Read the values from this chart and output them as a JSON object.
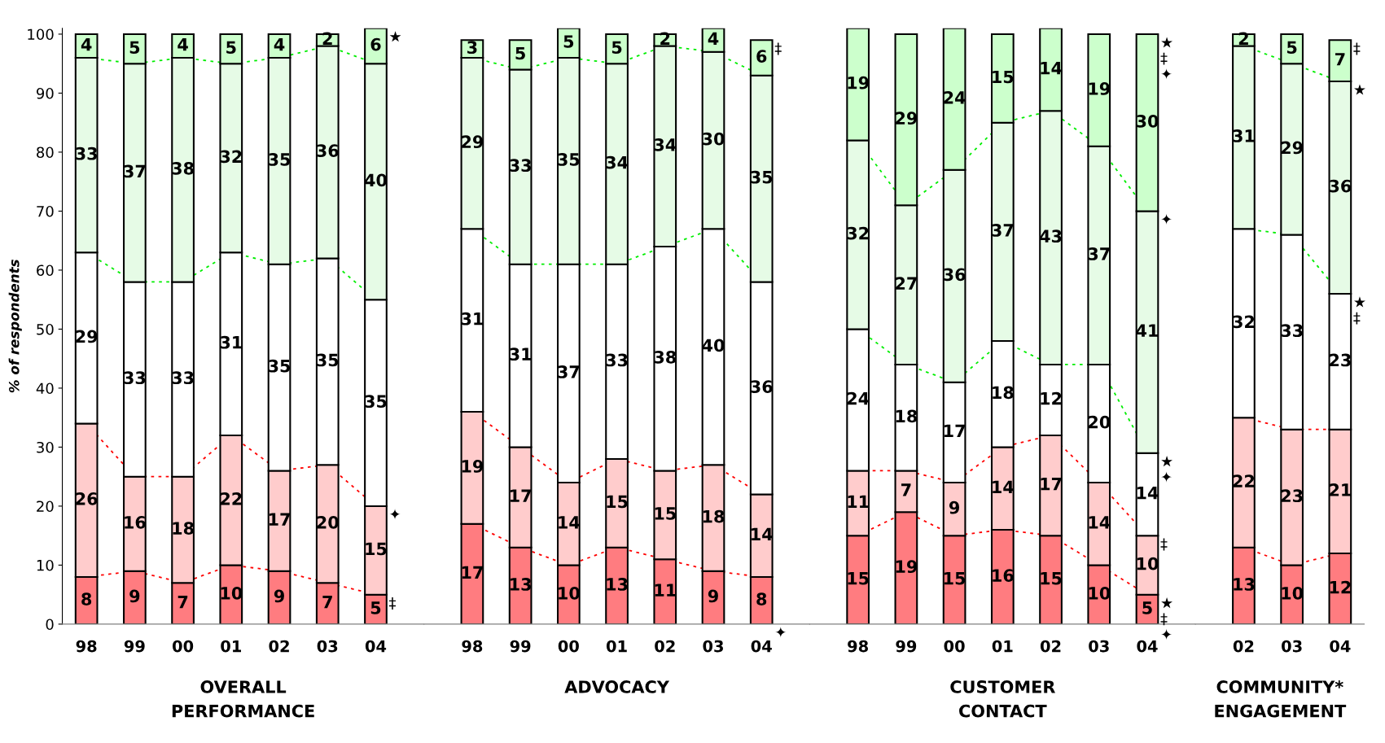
{
  "chart_data": [
    {
      "type": "bar",
      "stacked": true,
      "xlabel": "OVERALL\nPERFORMANCE",
      "ylabel": "% of respondents",
      "categories": [
        "98",
        "99",
        "00",
        "01",
        "02",
        "03",
        "04"
      ],
      "ylim": [
        0,
        101
      ],
      "yticks": [
        0,
        10,
        20,
        30,
        40,
        50,
        60,
        70,
        80,
        90,
        100
      ],
      "data_labels": true,
      "series": [
        {
          "color": "#ff7c80",
          "values": [
            8,
            9,
            7,
            10,
            9,
            7,
            5
          ]
        },
        {
          "color": "#ffcccc",
          "values": [
            26,
            16,
            18,
            22,
            17,
            20,
            15
          ]
        },
        {
          "color": "#ffffff",
          "values": [
            29,
            33,
            33,
            31,
            35,
            35,
            35
          ]
        },
        {
          "color": "#e6fbe6",
          "values": [
            33,
            37,
            38,
            32,
            35,
            36,
            40
          ]
        },
        {
          "color": "#ccffcc",
          "values": [
            4,
            5,
            4,
            5,
            4,
            2,
            6
          ]
        }
      ],
      "annotations": [
        {
          "text": "★",
          "x": "04",
          "y": 101
        },
        {
          "text": "✦",
          "x": "04",
          "y": 20
        },
        {
          "text": "‡",
          "x": "04",
          "y": 5
        }
      ]
    },
    {
      "type": "bar",
      "stacked": true,
      "xlabel": "ADVOCACY",
      "categories": [
        "98",
        "99",
        "00",
        "01",
        "02",
        "03",
        "04"
      ],
      "ylim": [
        0,
        101
      ],
      "yticks": [
        0,
        10,
        20,
        30,
        40,
        50,
        60,
        70,
        80,
        90,
        100
      ],
      "tick_labels": "x",
      "data_labels": true,
      "series": [
        {
          "color": "#ff7c80",
          "values": [
            17,
            13,
            10,
            13,
            11,
            9,
            8
          ]
        },
        {
          "color": "#ffcccc",
          "values": [
            19,
            17,
            14,
            15,
            15,
            18,
            14
          ]
        },
        {
          "color": "#ffffff",
          "values": [
            31,
            31,
            37,
            33,
            38,
            40,
            36
          ]
        },
        {
          "color": "#e6fbe6",
          "values": [
            29,
            33,
            35,
            34,
            34,
            30,
            35
          ]
        },
        {
          "color": "#ccffcc",
          "values": [
            3,
            5,
            5,
            5,
            2,
            4,
            6
          ]
        }
      ],
      "annotations": [
        {
          "text": "‡",
          "x": "04",
          "y": 99
        },
        {
          "text": "✦",
          "x": "04",
          "y": 0
        }
      ]
    },
    {
      "type": "bar",
      "stacked": true,
      "xlabel": "CUSTOMER\nCONTACT",
      "categories": [
        "98",
        "99",
        "00",
        "01",
        "02",
        "03",
        "04"
      ],
      "ylim": [
        0,
        101
      ],
      "yticks": [
        0,
        10,
        20,
        30,
        40,
        50,
        60,
        70,
        80,
        90,
        100
      ],
      "tick_labels": "x",
      "data_labels": true,
      "series": [
        {
          "color": "#ff7c80",
          "values": [
            15,
            19,
            15,
            16,
            15,
            10,
            5
          ]
        },
        {
          "color": "#ffcccc",
          "values": [
            11,
            7,
            9,
            14,
            17,
            14,
            10
          ]
        },
        {
          "color": "#ffffff",
          "values": [
            24,
            18,
            17,
            18,
            12,
            20,
            14
          ]
        },
        {
          "color": "#e6fbe6",
          "values": [
            32,
            27,
            36,
            37,
            43,
            37,
            41
          ]
        },
        {
          "color": "#ccffcc",
          "values": [
            19,
            29,
            24,
            15,
            14,
            19,
            30
          ]
        }
      ],
      "annotations": [
        {
          "text": "★",
          "x": "04",
          "y": 100
        },
        {
          "text": "‡",
          "x": "04",
          "y": 100
        },
        {
          "text": "✦",
          "x": "04",
          "y": 100
        },
        {
          "text": "✦",
          "x": "04",
          "y": 70
        },
        {
          "text": "★",
          "x": "04",
          "y": 29
        },
        {
          "text": "✦",
          "x": "04",
          "y": 29
        },
        {
          "text": "‡",
          "x": "04",
          "y": 15
        },
        {
          "text": "★",
          "x": "04",
          "y": 5
        },
        {
          "text": "‡",
          "x": "04",
          "y": 5
        },
        {
          "text": "✦",
          "x": "04",
          "y": 5
        }
      ]
    },
    {
      "type": "bar",
      "stacked": true,
      "xlabel": "COMMUNITY*\nENGAGEMENT",
      "categories": [
        "02",
        "03",
        "04"
      ],
      "ylim": [
        0,
        101
      ],
      "yticks": [
        0,
        10,
        20,
        30,
        40,
        50,
        60,
        70,
        80,
        90,
        100
      ],
      "tick_labels": "x",
      "data_labels": true,
      "series": [
        {
          "color": "#ff7c80",
          "values": [
            13,
            10,
            12
          ]
        },
        {
          "color": "#ffcccc",
          "values": [
            22,
            23,
            21
          ]
        },
        {
          "color": "#ffffff",
          "values": [
            32,
            33,
            23
          ]
        },
        {
          "color": "#e6fbe6",
          "values": [
            31,
            29,
            36
          ]
        },
        {
          "color": "#ccffcc",
          "values": [
            2,
            5,
            7
          ]
        }
      ],
      "annotations": [
        {
          "text": "‡",
          "x": "04",
          "y": 99
        },
        {
          "text": "★",
          "x": "04",
          "y": 92
        },
        {
          "text": "★",
          "x": "04",
          "y": 56
        },
        {
          "text": "‡",
          "x": "04",
          "y": 56
        }
      ]
    }
  ]
}
